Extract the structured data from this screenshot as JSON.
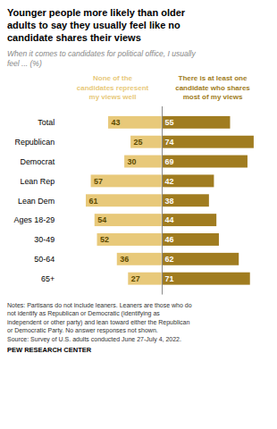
{
  "chart_data": {
    "type": "bar",
    "orientation": "horizontal",
    "title": "Younger people more likely than older\nadults to say they usually feel like no\ncandidate shares their views",
    "subtitle": "When it comes to candidates for political office, I usually\nfeel ... (%)",
    "categories": [
      "Total",
      "Republican",
      "Democrat",
      "Lean Rep",
      "Lean Dem",
      "Ages 18-29",
      "30-49",
      "50-64",
      "65+"
    ],
    "series": [
      {
        "name": "None of the\ncandidates represent\nmy views well",
        "color": "#e8c97a",
        "values": [
          43,
          25,
          30,
          57,
          61,
          54,
          52,
          36,
          27
        ]
      },
      {
        "name": "There is at least one\ncandidate who shares\nmost of my views",
        "color": "#a07c20",
        "values": [
          55,
          74,
          69,
          42,
          38,
          44,
          46,
          62,
          71
        ]
      }
    ],
    "xlim": [
      0,
      80
    ],
    "data_labels": true,
    "tick_labels": "y",
    "grid": false,
    "notes": [
      "Notes: Partisans do not include leaners. Leaners are those who do",
      "not identify as Republican or Democratic (identifying as",
      "independent or other party) and lean toward either the Republican",
      "or Democratic Party. No answer responses not shown.",
      "Source: Survey of U.S. adults conducted June 27-July 4, 2022."
    ],
    "source": "PEW RESEARCH CENTER"
  }
}
